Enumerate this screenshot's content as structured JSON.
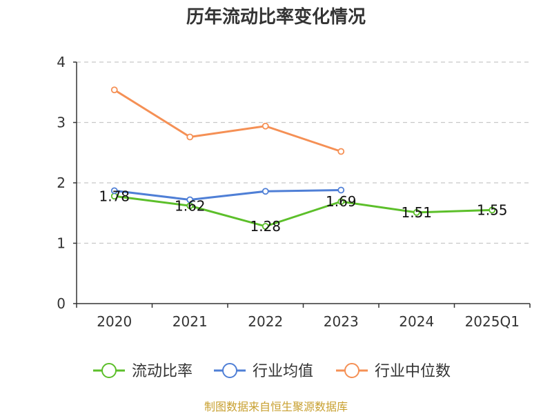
{
  "chart_data": {
    "type": "line",
    "title": "历年流动比率变化情况",
    "categories": [
      "2020",
      "2021",
      "2022",
      "2023",
      "2024",
      "2025Q1"
    ],
    "ylim": [
      0,
      4
    ],
    "yticks": [
      "0",
      "1",
      "2",
      "3",
      "4"
    ],
    "grid": true,
    "legend_position": "bottom",
    "series": [
      {
        "name": "流动比率",
        "color": "#5cbf2a",
        "values": [
          1.78,
          1.62,
          1.28,
          1.69,
          1.51,
          1.55
        ],
        "labels": [
          "1.78",
          "1.62",
          "1.28",
          "1.69",
          "1.51",
          "1.55"
        ]
      },
      {
        "name": "行业均值",
        "color": "#4f7fd6",
        "values": [
          1.87,
          1.72,
          1.86,
          1.88,
          null,
          null
        ]
      },
      {
        "name": "行业中位数",
        "color": "#f59055",
        "values": [
          3.54,
          2.76,
          2.94,
          2.52,
          null,
          null
        ]
      }
    ]
  },
  "source_text": "制图数据来自恒生聚源数据库"
}
